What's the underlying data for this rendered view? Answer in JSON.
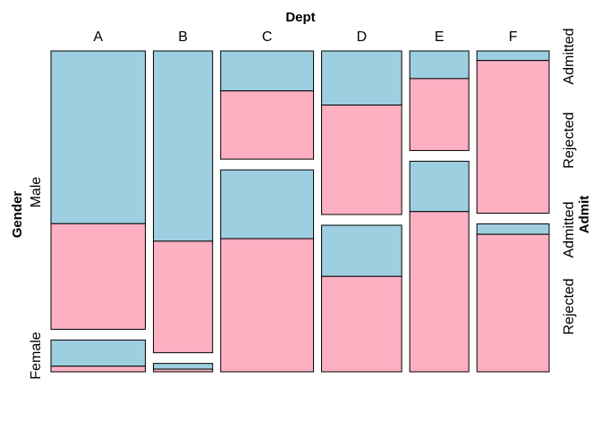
{
  "chart_data": {
    "type": "mosaic",
    "title": "",
    "x_variable": "Dept",
    "y_variable": "Gender",
    "fill_variable": "Admit",
    "departments": [
      "A",
      "B",
      "C",
      "D",
      "E",
      "F"
    ],
    "genders": [
      "Male",
      "Female"
    ],
    "admit_levels": [
      "Admitted",
      "Rejected"
    ],
    "colors": {
      "Admitted": "#9ecfe0",
      "Rejected": "#fcb0c2",
      "border": "#000000"
    },
    "counts": {
      "A": {
        "Male": {
          "Admitted": 512,
          "Rejected": 313
        },
        "Female": {
          "Admitted": 89,
          "Rejected": 19
        }
      },
      "B": {
        "Male": {
          "Admitted": 353,
          "Rejected": 207
        },
        "Female": {
          "Admitted": 17,
          "Rejected": 8
        }
      },
      "C": {
        "Male": {
          "Admitted": 120,
          "Rejected": 205
        },
        "Female": {
          "Admitted": 202,
          "Rejected": 391
        }
      },
      "D": {
        "Male": {
          "Admitted": 138,
          "Rejected": 279
        },
        "Female": {
          "Admitted": 131,
          "Rejected": 244
        }
      },
      "E": {
        "Male": {
          "Admitted": 53,
          "Rejected": 138
        },
        "Female": {
          "Admitted": 94,
          "Rejected": 299
        }
      },
      "F": {
        "Male": {
          "Admitted": 22,
          "Rejected": 351
        },
        "Female": {
          "Admitted": 24,
          "Rejected": 317
        }
      }
    }
  }
}
